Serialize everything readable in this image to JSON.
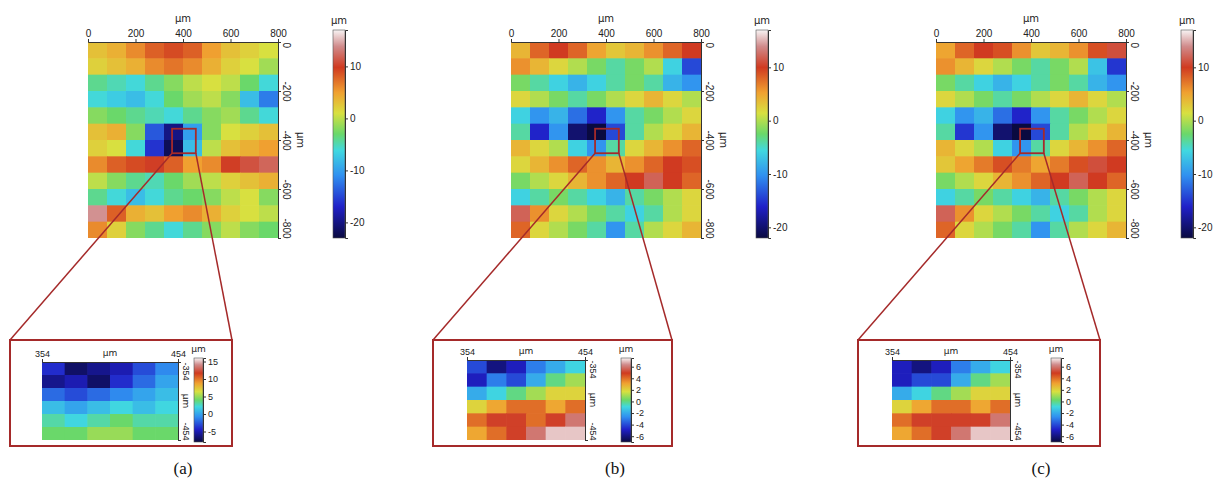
{
  "chart_data": [
    {
      "type": "heatmap",
      "title": "(a)",
      "x_label": "µm",
      "y_label": "µm",
      "xlim": [
        0,
        800
      ],
      "xticks": [
        0,
        200,
        400,
        600,
        800
      ],
      "ylim": [
        -800,
        0
      ],
      "yticks": [
        0,
        -200,
        -400,
        -600,
        -800
      ],
      "cells": [
        [
          3,
          4,
          6,
          8,
          9,
          8,
          5,
          3,
          2,
          1
        ],
        [
          2,
          3,
          4,
          6,
          7,
          6,
          4,
          2,
          1,
          -1
        ],
        [
          -4,
          -5,
          -6,
          -4,
          -2,
          0,
          1,
          0,
          -3,
          -6
        ],
        [
          -6,
          -7,
          -8,
          -6,
          -3,
          -1,
          0,
          -2,
          -8,
          -12
        ],
        [
          -2,
          -3,
          -4,
          -5,
          -6,
          -4,
          -2,
          -1,
          -4,
          -6
        ],
        [
          3,
          4,
          -2,
          -14,
          -20,
          -10,
          -2,
          1,
          2,
          3
        ],
        [
          2,
          1,
          -6,
          -16,
          -22,
          -8,
          0,
          3,
          4,
          5
        ],
        [
          6,
          8,
          9,
          10,
          8,
          5,
          6,
          10,
          11,
          12
        ],
        [
          0,
          -2,
          -4,
          -5,
          -3,
          -1,
          0,
          2,
          3,
          4
        ],
        [
          -4,
          -6,
          -8,
          -6,
          -4,
          -3,
          -2,
          0,
          1,
          -2
        ],
        [
          14,
          8,
          4,
          3,
          5,
          6,
          4,
          2,
          1,
          0
        ],
        [
          6,
          2,
          -2,
          -4,
          -6,
          -4,
          -2,
          0,
          -2,
          -3
        ]
      ],
      "colorbar": {
        "label": "µm",
        "range": [
          -23,
          17
        ],
        "ticks": [
          10,
          0,
          -10,
          -20
        ]
      },
      "inset": {
        "type": "heatmap",
        "x_label": "µm",
        "y_label": "µm",
        "xlim": [
          354,
          454
        ],
        "xticks": [
          354,
          454
        ],
        "ylim": [
          -454,
          -354
        ],
        "yticks": [
          -354,
          -454
        ],
        "cells": [
          [
            -4,
            -7,
            -6,
            -5,
            -3,
            -1
          ],
          [
            -6,
            -5,
            -7,
            -4,
            -2,
            0
          ],
          [
            -2,
            -3,
            -2,
            -1,
            0,
            1
          ],
          [
            1,
            0,
            1,
            2,
            1,
            2
          ],
          [
            3,
            2,
            3,
            4,
            3,
            3
          ],
          [
            4,
            4,
            5,
            5,
            4,
            4
          ]
        ],
        "colorbar": {
          "label": "µm",
          "range": [
            -8,
            16
          ],
          "ticks": [
            15,
            10,
            5,
            0,
            -5
          ]
        }
      }
    },
    {
      "type": "heatmap",
      "title": "(b)",
      "x_label": "µm",
      "y_label": "µm",
      "xlim": [
        0,
        800
      ],
      "xticks": [
        0,
        200,
        400,
        600,
        800
      ],
      "ylim": [
        -800,
        0
      ],
      "yticks": [
        0,
        -200,
        -400,
        -600,
        -800
      ],
      "cells": [
        [
          4,
          8,
          10,
          8,
          5,
          3,
          4,
          6,
          8,
          10
        ],
        [
          6,
          4,
          2,
          0,
          -2,
          -4,
          -2,
          0,
          -6,
          -14
        ],
        [
          -2,
          -4,
          -6,
          -8,
          -6,
          -4,
          -2,
          -4,
          -8,
          -10
        ],
        [
          2,
          0,
          -2,
          -4,
          -2,
          0,
          2,
          4,
          2,
          0
        ],
        [
          -6,
          -10,
          -8,
          -12,
          -16,
          -10,
          -4,
          -2,
          0,
          2
        ],
        [
          -4,
          -16,
          -10,
          -20,
          -22,
          -14,
          -4,
          0,
          2,
          4
        ],
        [
          4,
          2,
          0,
          -6,
          -10,
          -4,
          2,
          4,
          6,
          8
        ],
        [
          2,
          4,
          6,
          8,
          6,
          4,
          6,
          8,
          10,
          9
        ],
        [
          -2,
          0,
          2,
          4,
          6,
          8,
          10,
          12,
          10,
          8
        ],
        [
          -6,
          -4,
          -2,
          -4,
          -6,
          -8,
          -4,
          -2,
          0,
          2
        ],
        [
          12,
          6,
          2,
          0,
          -2,
          -4,
          -6,
          -4,
          0,
          2
        ],
        [
          8,
          2,
          0,
          -2,
          -4,
          -10,
          -4,
          0,
          2,
          4
        ]
      ],
      "colorbar": {
        "label": "µm",
        "range": [
          -22,
          17
        ],
        "ticks": [
          10,
          0,
          -10,
          -20
        ]
      },
      "inset": {
        "type": "heatmap",
        "x_label": "µm",
        "y_label": "µm",
        "xlim": [
          354,
          454
        ],
        "xticks": [
          354,
          454
        ],
        "ylim": [
          -454,
          -354
        ],
        "yticks": [
          -354,
          -454
        ],
        "cells": [
          [
            -4,
            -6,
            -5,
            -3,
            -2,
            -1
          ],
          [
            -5,
            -3,
            -4,
            -2,
            0,
            1
          ],
          [
            -2,
            -1,
            0,
            1,
            2,
            2
          ],
          [
            2,
            3,
            4,
            4,
            3,
            4
          ],
          [
            4,
            5,
            5,
            4,
            5,
            6
          ],
          [
            3,
            4,
            5,
            6,
            7,
            7
          ]
        ],
        "colorbar": {
          "label": "µm",
          "range": [
            -7,
            7.5
          ],
          "ticks": [
            6,
            4,
            2,
            0,
            -2,
            -4,
            -6
          ]
        }
      }
    },
    {
      "type": "heatmap",
      "title": "(c)",
      "x_label": "µm",
      "y_label": "µm",
      "xlim": [
        0,
        800
      ],
      "xticks": [
        0,
        200,
        400,
        600,
        800
      ],
      "ylim": [
        -800,
        0
      ],
      "yticks": [
        0,
        -200,
        -400,
        -600,
        -800
      ],
      "cells": [
        [
          5,
          8,
          10,
          9,
          6,
          3,
          4,
          6,
          9,
          11
        ],
        [
          6,
          4,
          2,
          0,
          -2,
          -4,
          -2,
          0,
          -7,
          -15
        ],
        [
          -2,
          -4,
          -6,
          -8,
          -6,
          -4,
          -2,
          -4,
          -8,
          -10
        ],
        [
          2,
          0,
          -2,
          -4,
          -2,
          0,
          2,
          4,
          2,
          0
        ],
        [
          -6,
          -10,
          -8,
          -12,
          -16,
          -10,
          -4,
          -2,
          0,
          2
        ],
        [
          -4,
          -15,
          -10,
          -20,
          -22,
          -14,
          -4,
          0,
          2,
          4
        ],
        [
          4,
          2,
          0,
          -6,
          -10,
          -4,
          2,
          4,
          6,
          8
        ],
        [
          3,
          5,
          7,
          9,
          7,
          5,
          7,
          9,
          11,
          10
        ],
        [
          -2,
          0,
          2,
          4,
          6,
          8,
          10,
          12,
          10,
          8
        ],
        [
          -6,
          -4,
          -2,
          -4,
          -6,
          -8,
          -4,
          -2,
          0,
          2
        ],
        [
          12,
          6,
          2,
          0,
          -2,
          -4,
          -6,
          -4,
          0,
          2
        ],
        [
          8,
          2,
          0,
          -2,
          -4,
          -10,
          -4,
          0,
          2,
          4
        ]
      ],
      "colorbar": {
        "label": "µm",
        "range": [
          -22,
          17
        ],
        "ticks": [
          10,
          0,
          -10,
          -20
        ]
      },
      "inset": {
        "type": "heatmap",
        "x_label": "µm",
        "y_label": "µm",
        "xlim": [
          354,
          454
        ],
        "xticks": [
          354,
          454
        ],
        "ylim": [
          -454,
          -354
        ],
        "yticks": [
          -354,
          -454
        ],
        "cells": [
          [
            -5,
            -6,
            -5,
            -3,
            -2,
            -1
          ],
          [
            -5,
            -4,
            -4,
            -2,
            0,
            1
          ],
          [
            -2,
            -1,
            0,
            1,
            2,
            2
          ],
          [
            2,
            3,
            4,
            4,
            3,
            4
          ],
          [
            4,
            5,
            5,
            5,
            5,
            6
          ],
          [
            3,
            4,
            5,
            6,
            7,
            7
          ]
        ],
        "colorbar": {
          "label": "µm",
          "range": [
            -7,
            7.5
          ],
          "ticks": [
            6,
            4,
            2,
            0,
            -2,
            -4,
            -6
          ]
        }
      }
    }
  ]
}
